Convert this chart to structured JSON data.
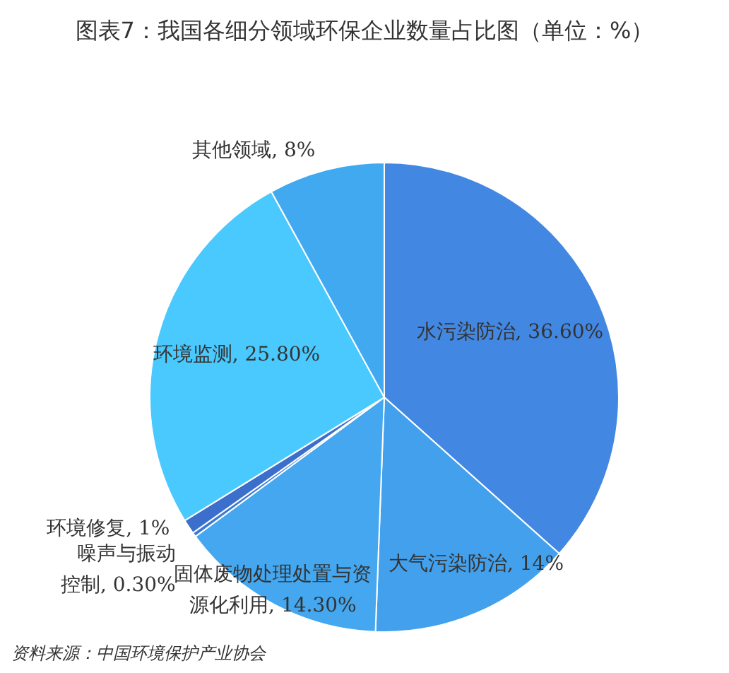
{
  "chart_data": {
    "type": "pie",
    "title": "图表7：我国各细分领域环保企业数量占比图（单位：%）",
    "categories": [
      "水污染防治",
      "大气污染防治",
      "固体废物处理处置与资源化利用",
      "噪声与振动控制",
      "环境修复",
      "环境监测",
      "其他领域"
    ],
    "values": [
      36.6,
      14,
      14.3,
      0.3,
      1,
      25.8,
      8
    ],
    "value_labels": [
      "36.60%",
      "14%",
      "14.30%",
      "0.30%",
      "1%",
      "25.80%",
      "8%"
    ],
    "colors": [
      "#4287e2",
      "#42a0ec",
      "#44a7ef",
      "#3a7ad6",
      "#3c6fcb",
      "#49c9fd",
      "#40a9ef"
    ],
    "annotations": [
      "资料来源：中国环境保护产业协会"
    ]
  }
}
